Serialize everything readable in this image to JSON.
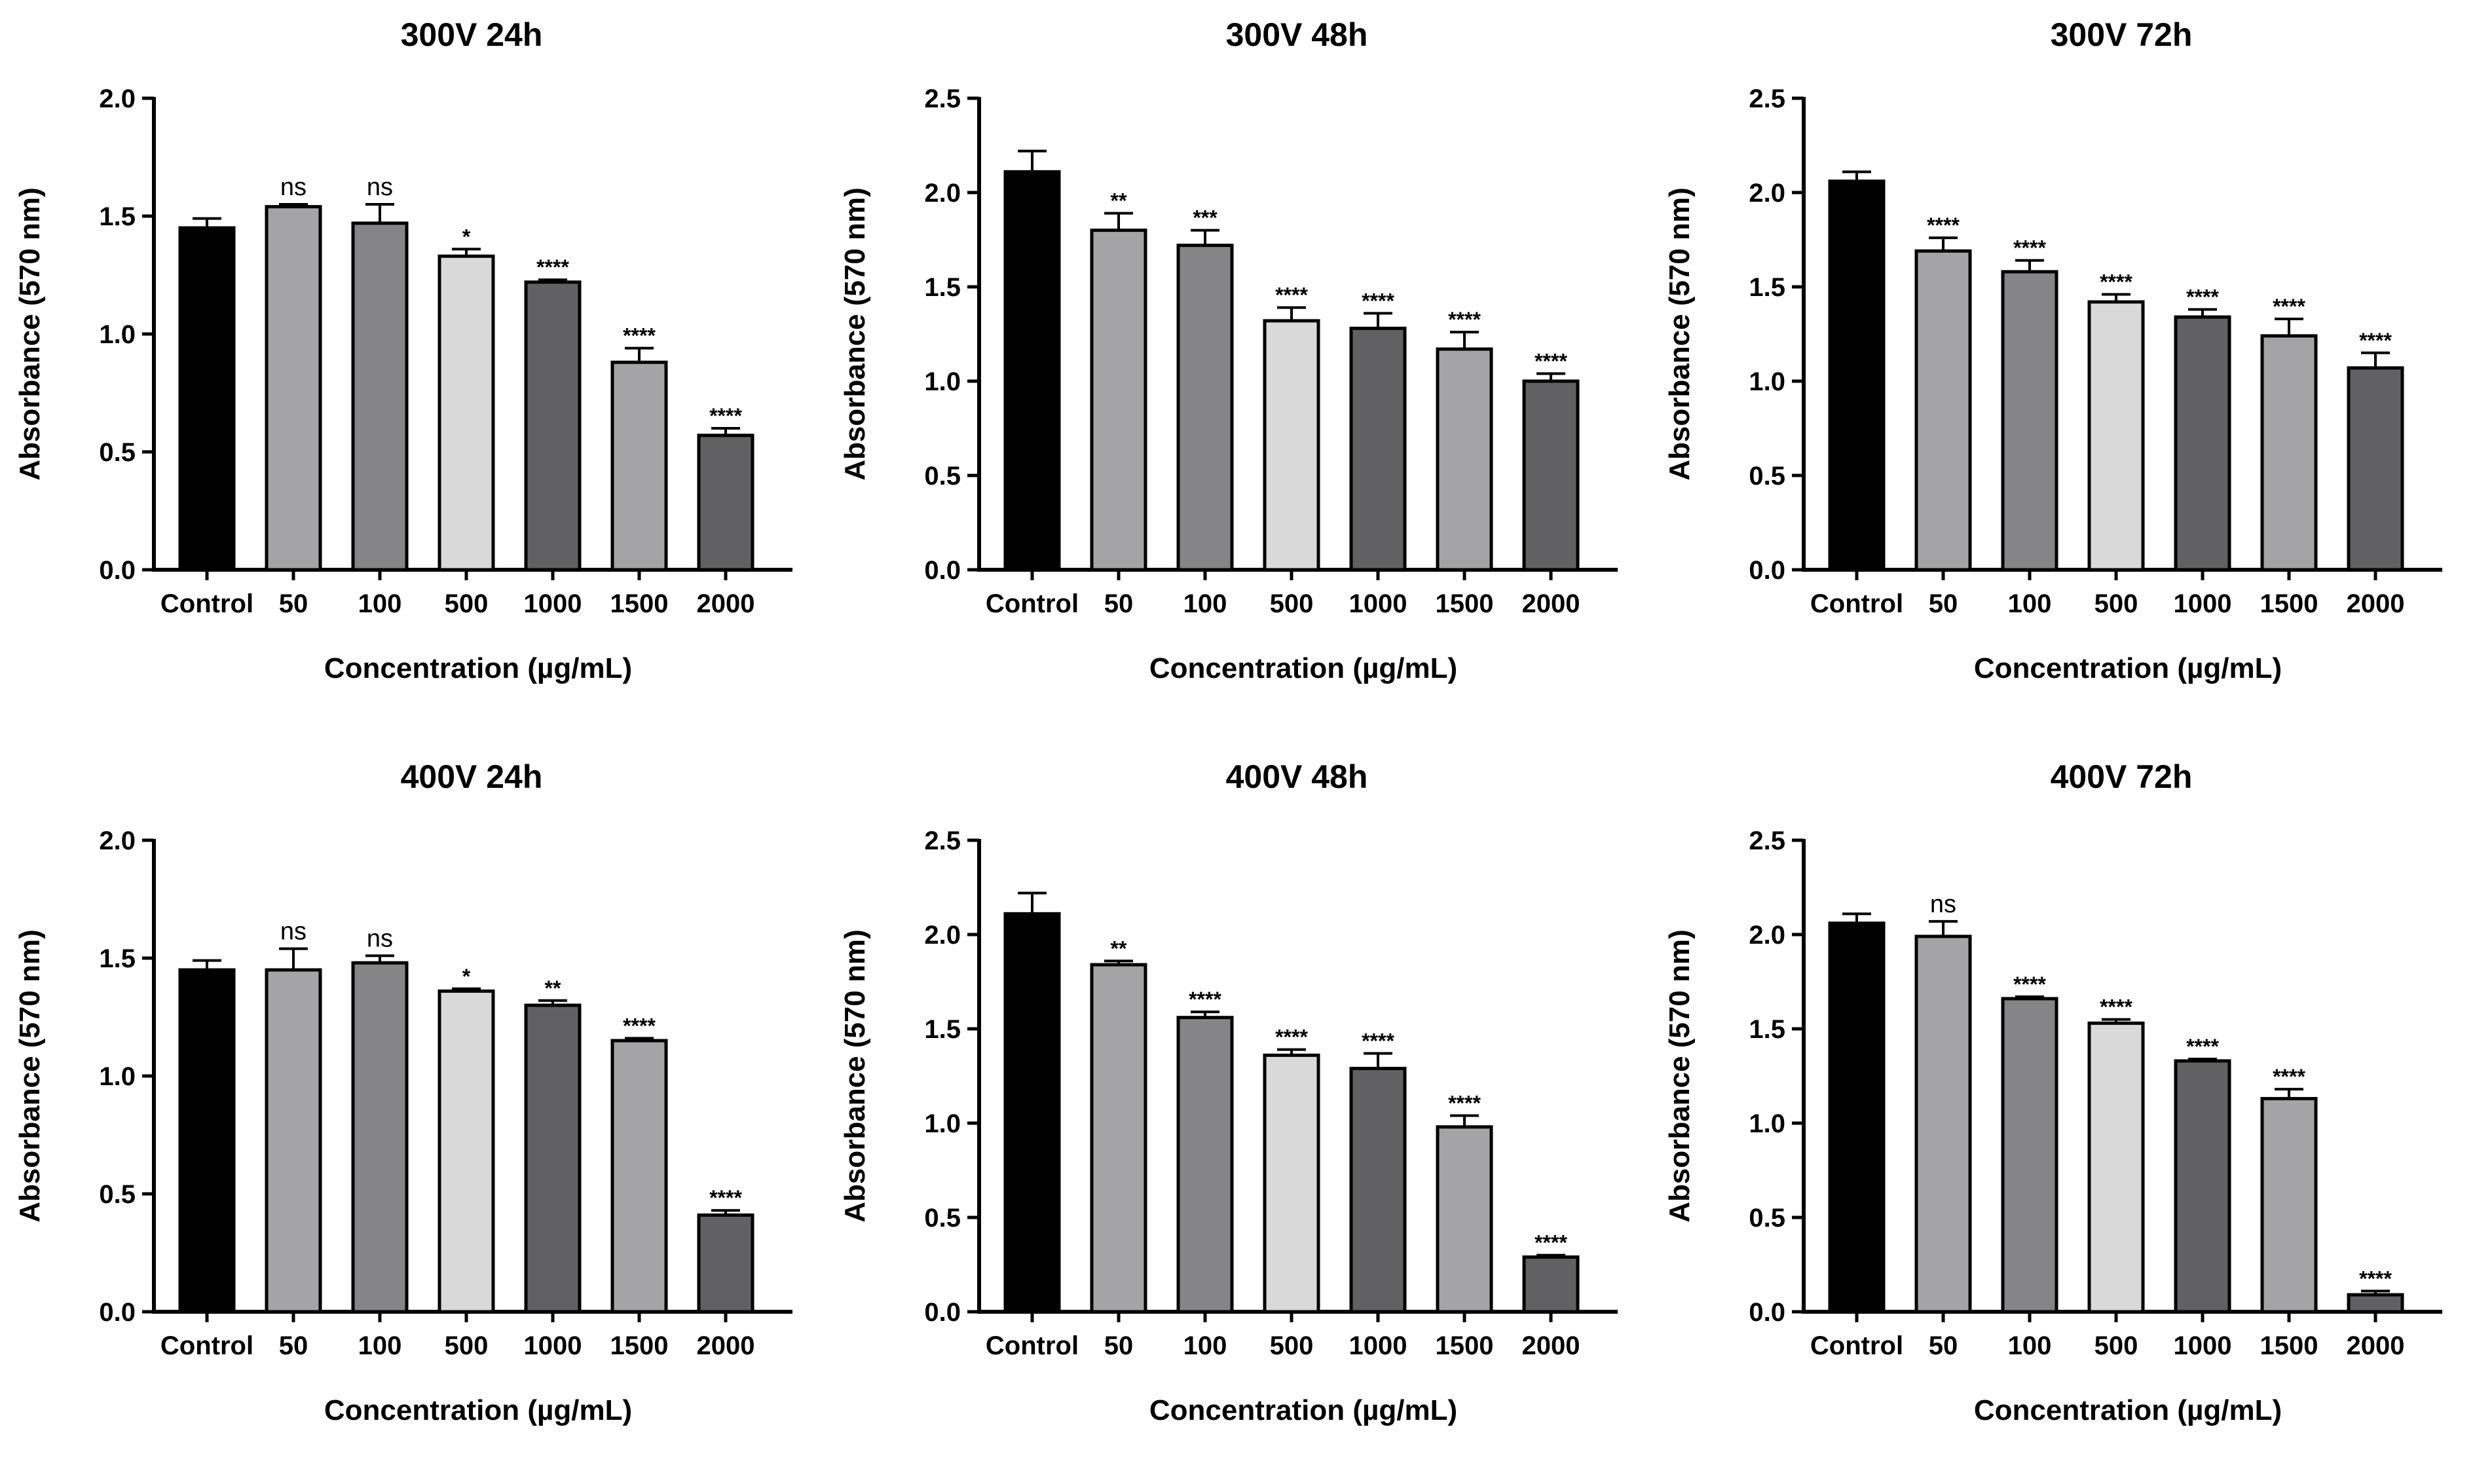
{
  "figure": {
    "xlabel": "Concentration (µg/mL)",
    "ylabel": "Absorbance (570 nm)"
  },
  "colors": {
    "axis": "#000000",
    "bars": [
      "#000000",
      "#a4a4a7",
      "#858587",
      "#d9d9d9",
      "#616163",
      "#a4a4a7",
      "#616163"
    ]
  },
  "chart_data": [
    {
      "type": "bar",
      "title": "300V 24h",
      "xlabel": "Concentration (µg/mL)",
      "ylabel": "Absorbance (570 nm)",
      "categories": [
        "Control",
        "50",
        "100",
        "500",
        "1000",
        "1500",
        "2000"
      ],
      "values": [
        1.45,
        1.54,
        1.47,
        1.33,
        1.22,
        0.88,
        0.57
      ],
      "errors": [
        0.04,
        0.01,
        0.08,
        0.03,
        0.01,
        0.06,
        0.03
      ],
      "significance": [
        "",
        "ns",
        "ns",
        "*",
        "****",
        "****",
        "****"
      ],
      "ylim": [
        0,
        2.0
      ],
      "yticks": [
        "0.0",
        "0.5",
        "1.0",
        "1.5",
        "2.0"
      ]
    },
    {
      "type": "bar",
      "title": "300V 48h",
      "xlabel": "Concentration (µg/mL)",
      "ylabel": "Absorbance (570 nm)",
      "categories": [
        "Control",
        "50",
        "100",
        "500",
        "1000",
        "1500",
        "2000"
      ],
      "values": [
        2.11,
        1.8,
        1.72,
        1.32,
        1.28,
        1.17,
        1.0
      ],
      "errors": [
        0.11,
        0.09,
        0.08,
        0.07,
        0.08,
        0.09,
        0.04
      ],
      "significance": [
        "",
        "**",
        "***",
        "****",
        "****",
        "****",
        "****"
      ],
      "ylim": [
        0,
        2.5
      ],
      "yticks": [
        "0.0",
        "0.5",
        "1.0",
        "1.5",
        "2.0",
        "2.5"
      ]
    },
    {
      "type": "bar",
      "title": "300V 72h",
      "xlabel": "Concentration (µg/mL)",
      "ylabel": "Absorbance (570 nm)",
      "categories": [
        "Control",
        "50",
        "100",
        "500",
        "1000",
        "1500",
        "2000"
      ],
      "values": [
        2.06,
        1.69,
        1.58,
        1.42,
        1.34,
        1.24,
        1.07
      ],
      "errors": [
        0.05,
        0.07,
        0.06,
        0.04,
        0.04,
        0.09,
        0.08
      ],
      "significance": [
        "",
        "****",
        "****",
        "****",
        "****",
        "****",
        "****"
      ],
      "ylim": [
        0,
        2.5
      ],
      "yticks": [
        "0.0",
        "0.5",
        "1.0",
        "1.5",
        "2.0",
        "2.5"
      ]
    },
    {
      "type": "bar",
      "title": "400V 24h",
      "xlabel": "Concentration (µg/mL)",
      "ylabel": "Absorbance (570 nm)",
      "categories": [
        "Control",
        "50",
        "100",
        "500",
        "1000",
        "1500",
        "2000"
      ],
      "values": [
        1.45,
        1.45,
        1.48,
        1.36,
        1.3,
        1.15,
        0.41
      ],
      "errors": [
        0.04,
        0.09,
        0.03,
        0.01,
        0.02,
        0.01,
        0.02
      ],
      "significance": [
        "",
        "ns",
        "ns",
        "*",
        "**",
        "****",
        "****"
      ],
      "ylim": [
        0,
        2.0
      ],
      "yticks": [
        "0.0",
        "0.5",
        "1.0",
        "1.5",
        "2.0"
      ]
    },
    {
      "type": "bar",
      "title": "400V 48h",
      "xlabel": "Concentration (µg/mL)",
      "ylabel": "Absorbance (570 nm)",
      "categories": [
        "Control",
        "50",
        "100",
        "500",
        "1000",
        "1500",
        "2000"
      ],
      "values": [
        2.11,
        1.84,
        1.56,
        1.36,
        1.29,
        0.98,
        0.29
      ],
      "errors": [
        0.11,
        0.02,
        0.03,
        0.03,
        0.08,
        0.06,
        0.01
      ],
      "significance": [
        "",
        "**",
        "****",
        "****",
        "****",
        "****",
        "****"
      ],
      "ylim": [
        0,
        2.5
      ],
      "yticks": [
        "0.0",
        "0.5",
        "1.0",
        "1.5",
        "2.0",
        "2.5"
      ]
    },
    {
      "type": "bar",
      "title": "400V 72h",
      "xlabel": "Concentration (µg/mL)",
      "ylabel": "Absorbance (570 nm)",
      "categories": [
        "Control",
        "50",
        "100",
        "500",
        "1000",
        "1500",
        "2000"
      ],
      "values": [
        2.06,
        1.99,
        1.66,
        1.53,
        1.33,
        1.13,
        0.09
      ],
      "errors": [
        0.05,
        0.08,
        0.01,
        0.02,
        0.01,
        0.05,
        0.02
      ],
      "significance": [
        "",
        "ns",
        "****",
        "****",
        "****",
        "****",
        "****"
      ],
      "ylim": [
        0,
        2.5
      ],
      "yticks": [
        "0.0",
        "0.5",
        "1.0",
        "1.5",
        "2.0",
        "2.5"
      ]
    }
  ]
}
